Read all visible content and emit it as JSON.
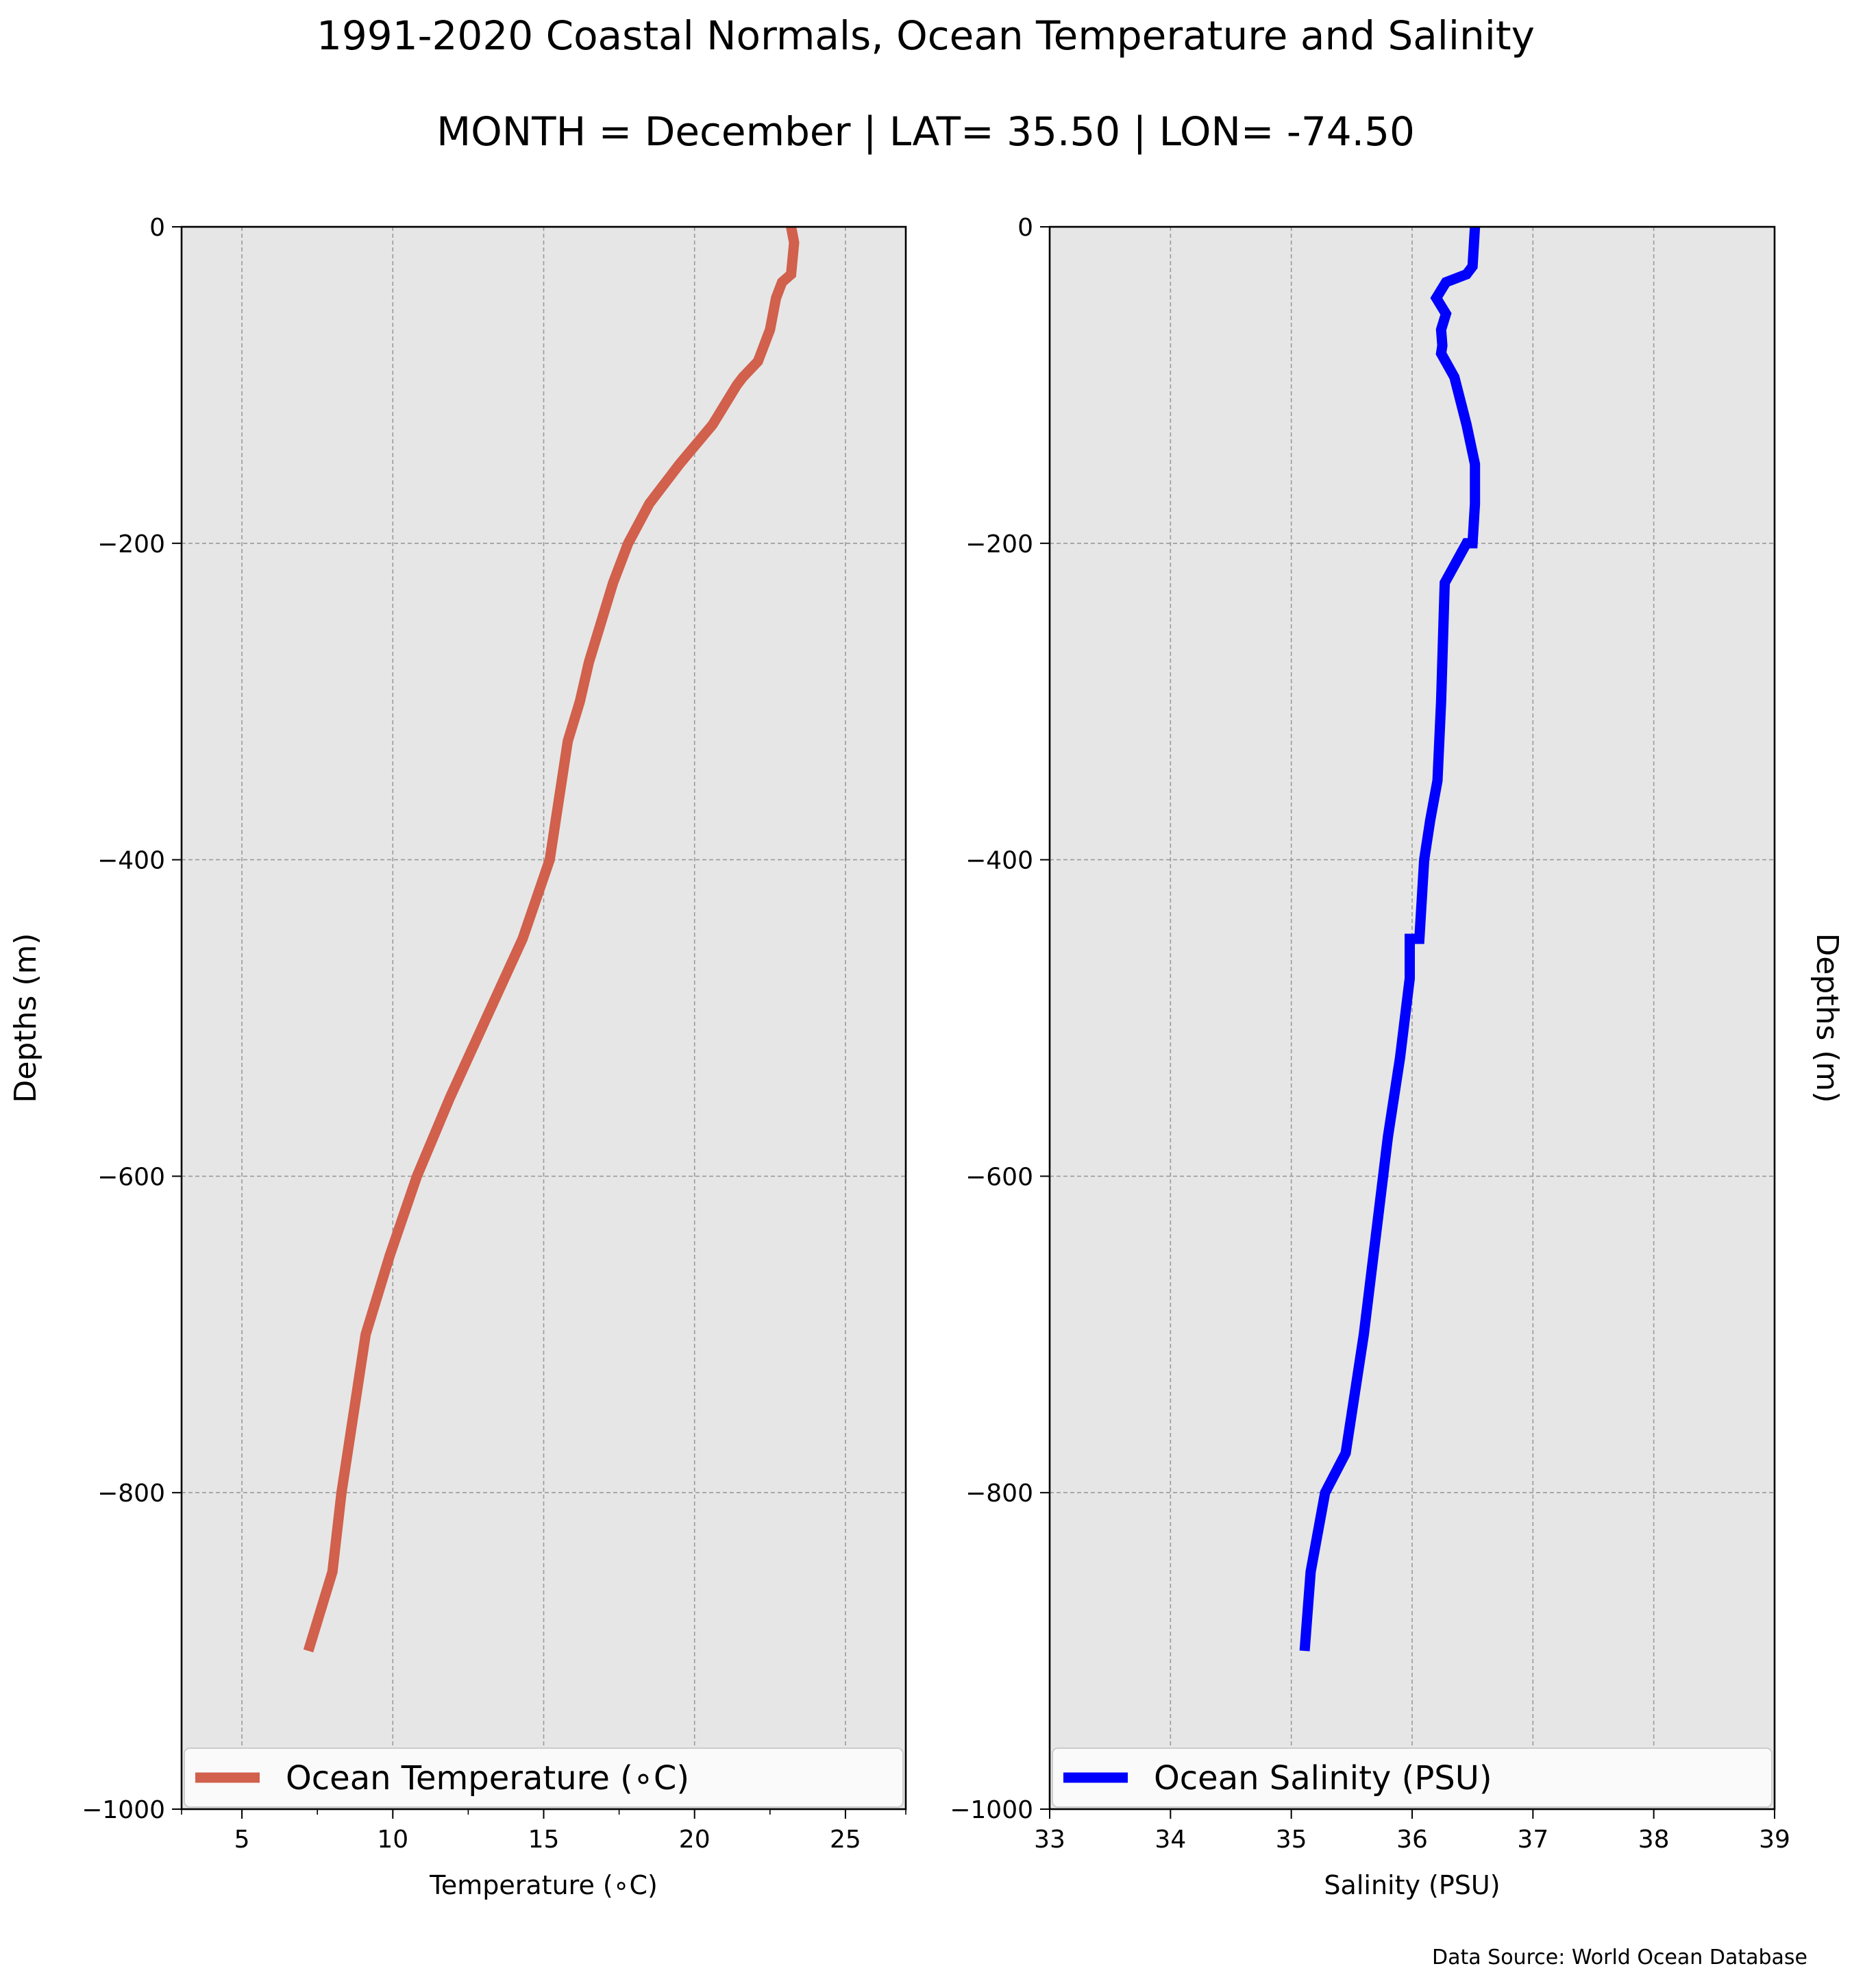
{
  "title": "1991-2020 Coastal Normals, Ocean Temperature and Salinity",
  "subtitle": "MONTH = December | LAT= 35.50 | LON= -74.50",
  "source": "Data Source: World Ocean Database",
  "chart_data": [
    {
      "type": "line",
      "xlabel": "Temperature (∘C)",
      "ylabel": "Depths (m)",
      "xlim": [
        3,
        27
      ],
      "ylim": [
        -1000,
        0
      ],
      "x_ticks": [
        "5",
        "10",
        "15",
        "20",
        "25"
      ],
      "y_ticks": [
        "0",
        "−200",
        "−400",
        "−600",
        "−800",
        "−1000"
      ],
      "grid": true,
      "legend_position": "bottom",
      "series": [
        {
          "name": "Ocean Temperature (∘C)",
          "color": "#d1604c",
          "x": [
            23.2,
            23.3,
            23.2,
            22.9,
            22.7,
            22.6,
            22.5,
            22.3,
            22.1,
            21.6,
            21.4,
            20.6,
            19.5,
            18.5,
            17.8,
            17.3,
            16.9,
            16.5,
            16.2,
            15.8,
            15.4,
            15.2,
            14.3,
            13.1,
            11.9,
            10.8,
            9.9,
            9.1,
            8.3,
            8.0,
            7.2
          ],
          "y": [
            0,
            -10,
            -30,
            -35,
            -45,
            -55,
            -65,
            -75,
            -85,
            -95,
            -100,
            -125,
            -150,
            -175,
            -200,
            -225,
            -250,
            -275,
            -300,
            -325,
            -375,
            -400,
            -450,
            -500,
            -550,
            -600,
            -650,
            -700,
            -800,
            -850,
            -900
          ]
        }
      ]
    },
    {
      "type": "line",
      "xlabel": "Salinity (PSU)",
      "ylabel": "Depths (m)",
      "xlim": [
        33,
        39
      ],
      "ylim": [
        -1000,
        0
      ],
      "x_ticks": [
        "33",
        "34",
        "35",
        "36",
        "37",
        "38",
        "39"
      ],
      "y_ticks": [
        "0",
        "−200",
        "−400",
        "−600",
        "−800",
        "−1000"
      ],
      "grid": true,
      "legend_position": "bottom",
      "series": [
        {
          "name": "Ocean Salinity (PSU)",
          "color": "#0000ff",
          "x": [
            36.52,
            36.5,
            36.45,
            36.28,
            36.2,
            36.28,
            36.24,
            36.25,
            36.24,
            36.35,
            36.45,
            36.52,
            36.52,
            36.5,
            36.45,
            36.27,
            36.26,
            36.24,
            36.21,
            36.15,
            36.1,
            36.06,
            35.98,
            35.98,
            35.9,
            35.8,
            35.6,
            35.45,
            35.28,
            35.16,
            35.11
          ],
          "y": [
            0,
            -25,
            -30,
            -35,
            -45,
            -55,
            -65,
            -75,
            -80,
            -95,
            -125,
            -150,
            -175,
            -200,
            -200,
            -225,
            -250,
            -300,
            -350,
            -375,
            -400,
            -450,
            -450,
            -475,
            -525,
            -575,
            -700,
            -775,
            -800,
            -850,
            -900
          ]
        }
      ]
    }
  ]
}
